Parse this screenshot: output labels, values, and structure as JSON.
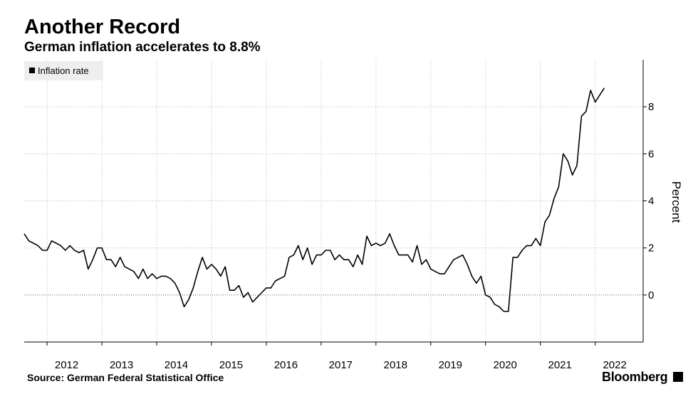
{
  "header": {
    "title": "Another Record",
    "subtitle": "German inflation accelerates to 8.8%"
  },
  "footer": {
    "source": "Source:  German Federal Statistical Office",
    "brand": "Bloomberg"
  },
  "colors": {
    "line": "#000000",
    "grid": "#bbbbbb",
    "zero_line": "#888888",
    "legend_bg": "#eeeeee"
  },
  "chart_data": {
    "type": "line",
    "ylabel": "Percent",
    "xlim": [
      2011.583,
      2022.875
    ],
    "ylim": [
      -2,
      10
    ],
    "yticks": [
      0,
      2,
      4,
      6,
      8
    ],
    "xticks": [
      "2012",
      "2013",
      "2014",
      "2015",
      "2016",
      "2017",
      "2018",
      "2019",
      "2020",
      "2021",
      "2022"
    ],
    "legend": {
      "placement": "top-left",
      "entries": [
        "Inflation rate"
      ]
    },
    "grid": true,
    "series": [
      {
        "name": "Inflation rate",
        "start": "2011-08",
        "frequency": "monthly",
        "values": [
          2.6,
          2.3,
          2.2,
          2.1,
          1.9,
          1.9,
          2.3,
          2.2,
          2.1,
          1.9,
          2.1,
          1.9,
          1.8,
          1.9,
          1.1,
          1.5,
          2.0,
          2.0,
          1.5,
          1.5,
          1.2,
          1.6,
          1.2,
          1.1,
          1.0,
          0.7,
          1.1,
          0.7,
          0.9,
          0.7,
          0.8,
          0.8,
          0.7,
          0.5,
          0.1,
          -0.5,
          -0.2,
          0.3,
          1.0,
          1.6,
          1.1,
          1.3,
          1.1,
          0.8,
          1.2,
          0.2,
          0.2,
          0.4,
          -0.1,
          0.1,
          -0.3,
          -0.1,
          0.1,
          0.3,
          0.3,
          0.6,
          0.7,
          0.8,
          1.6,
          1.7,
          2.1,
          1.5,
          2.0,
          1.3,
          1.7,
          1.7,
          1.9,
          1.9,
          1.5,
          1.7,
          1.5,
          1.5,
          1.2,
          1.7,
          1.3,
          2.5,
          2.1,
          2.2,
          2.1,
          2.2,
          2.6,
          2.1,
          1.7,
          1.7,
          1.7,
          1.4,
          2.1,
          1.3,
          1.5,
          1.1,
          1.0,
          0.9,
          0.9,
          1.2,
          1.5,
          1.6,
          1.7,
          1.3,
          0.8,
          0.5,
          0.8,
          0.0,
          -0.1,
          -0.4,
          -0.5,
          -0.7,
          -0.7,
          1.6,
          1.6,
          1.9,
          2.1,
          2.1,
          2.4,
          2.1,
          3.1,
          3.4,
          4.1,
          4.6,
          6.0,
          5.7,
          5.1,
          5.5,
          7.6,
          7.8,
          8.7,
          8.2,
          8.5,
          8.8
        ]
      }
    ]
  }
}
